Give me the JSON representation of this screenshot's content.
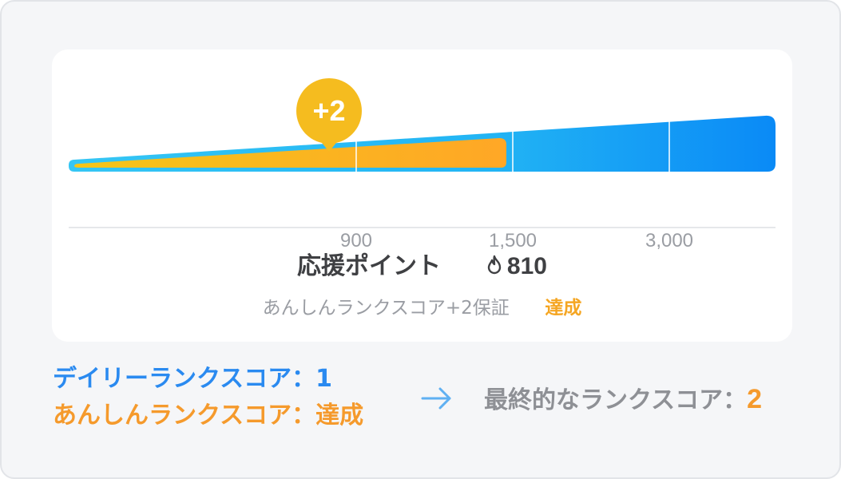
{
  "badge": {
    "label": "+2"
  },
  "progress": {
    "ticks": [
      "900",
      "1,500",
      "3,000"
    ],
    "current_points": 810,
    "colors": {
      "track_start": "#35c6f4",
      "track_end": "#0a8af6",
      "fill_start": "#f5c518",
      "fill_end": "#ffa726"
    }
  },
  "points": {
    "label": "応援ポイント",
    "value": "810",
    "icon": "flame-icon"
  },
  "guarantee": {
    "text": "あんしんランクスコア+2保証",
    "status": "達成"
  },
  "summary": {
    "daily_label": "デイリーランクスコア：",
    "daily_value": "1",
    "anshin_label": "あんしんランクスコア：",
    "anshin_value": "達成",
    "final_label": "最終的なランクスコア：",
    "final_value": "2"
  }
}
